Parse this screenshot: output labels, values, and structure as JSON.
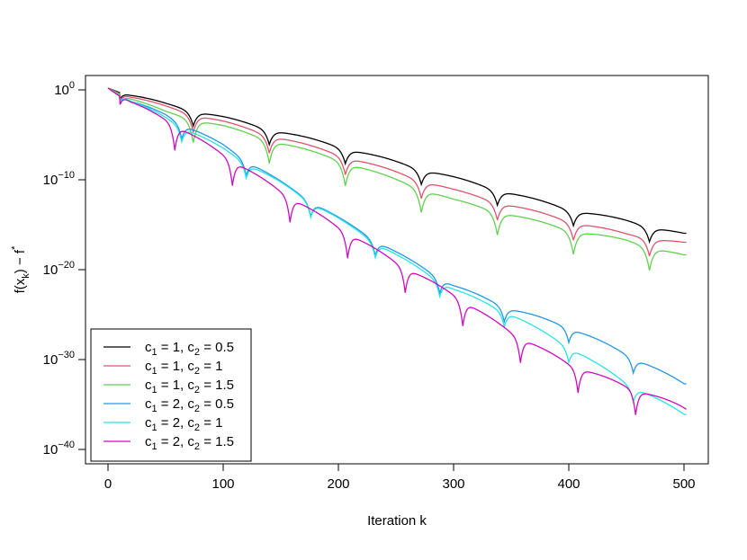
{
  "chart_data": {
    "type": "line",
    "title": "",
    "xlabel": "Iteration  k",
    "ylabel": "f(x_k) − f*",
    "x_scale": "linear",
    "y_scale": "log10",
    "xlim": [
      0,
      505
    ],
    "ylim_log10": [
      -41,
      2
    ],
    "x_ticks": [
      0,
      100,
      200,
      300,
      400,
      500
    ],
    "x_tick_labels": [
      "0",
      "100",
      "200",
      "300",
      "400",
      "500"
    ],
    "y_ticks_log10": [
      0,
      -10,
      -20,
      -30,
      -40
    ],
    "y_tick_labels": [
      "10^0",
      "10^-10",
      "10^-20",
      "10^-30",
      "10^-40"
    ],
    "grid": false,
    "legend_position": "bottom-left",
    "series": [
      {
        "name": "c1 = 1, c2 = 0.5",
        "legend": {
          "c1": "1",
          "c2": "0.5"
        },
        "color": "#000000",
        "period": 66,
        "dip_depth": 1.5,
        "points": [
          [
            0,
            0.2
          ],
          [
            20,
            -0.8
          ],
          [
            50,
            -1.8
          ],
          [
            100,
            -3.3
          ],
          [
            200,
            -6.5
          ],
          [
            300,
            -10.0
          ],
          [
            400,
            -13.5
          ],
          [
            450,
            -14.8
          ],
          [
            500,
            -16.3
          ]
        ]
      },
      {
        "name": "c1 = 1, c2 = 1",
        "legend": {
          "c1": "1",
          "c2": "1"
        },
        "color": "#DF536B",
        "period": 66,
        "dip_depth": 1.8,
        "points": [
          [
            0,
            0.2
          ],
          [
            20,
            -1.0
          ],
          [
            50,
            -2.1
          ],
          [
            100,
            -3.8
          ],
          [
            200,
            -7.4
          ],
          [
            300,
            -11.4
          ],
          [
            400,
            -14.8
          ],
          [
            450,
            -16.3
          ],
          [
            500,
            -17.3
          ]
        ]
      },
      {
        "name": "c1 = 1, c2 = 1.5",
        "legend": {
          "c1": "1",
          "c2": "1.5"
        },
        "color": "#61D04F",
        "period": 66,
        "dip_depth": 2.4,
        "points": [
          [
            0,
            0.2
          ],
          [
            20,
            -1.2
          ],
          [
            50,
            -2.7
          ],
          [
            100,
            -4.3
          ],
          [
            200,
            -8.0
          ],
          [
            300,
            -12.5
          ],
          [
            400,
            -15.8
          ],
          [
            450,
            -17.0
          ],
          [
            500,
            -18.7
          ]
        ]
      },
      {
        "name": "c1 = 2, c2 = 0.5",
        "legend": {
          "c1": "2",
          "c2": "0.5"
        },
        "color": "#2297E6",
        "period": 56,
        "dip_depth": 1.5,
        "points": [
          [
            0,
            0.2
          ],
          [
            20,
            -1.5
          ],
          [
            50,
            -3.0
          ],
          [
            100,
            -6.4
          ],
          [
            150,
            -10.5
          ],
          [
            200,
            -14.5
          ],
          [
            250,
            -18.3
          ],
          [
            300,
            -22.0
          ],
          [
            350,
            -24.6
          ],
          [
            400,
            -26.6
          ],
          [
            450,
            -29.6
          ],
          [
            500,
            -32.9
          ]
        ]
      },
      {
        "name": "c1 = 2, c2 = 1",
        "legend": {
          "c1": "2",
          "c2": "1"
        },
        "color": "#28E2E5",
        "period": 56,
        "dip_depth": 1.5,
        "points": [
          [
            0,
            0.2
          ],
          [
            20,
            -1.5
          ],
          [
            50,
            -3.3
          ],
          [
            100,
            -6.8
          ],
          [
            150,
            -10.6
          ],
          [
            200,
            -14.6
          ],
          [
            250,
            -18.6
          ],
          [
            300,
            -22.4
          ],
          [
            350,
            -25.2
          ],
          [
            400,
            -28.8
          ],
          [
            450,
            -32.8
          ],
          [
            500,
            -36.3
          ]
        ]
      },
      {
        "name": "c1 = 2, c2 = 1.5",
        "legend": {
          "c1": "2",
          "c2": "1.5"
        },
        "color": "#CD0BBC",
        "period": 50,
        "dip_depth": 2.6,
        "points": [
          [
            0,
            0.2
          ],
          [
            20,
            -1.6
          ],
          [
            50,
            -3.5
          ],
          [
            100,
            -7.4
          ],
          [
            150,
            -11.5
          ],
          [
            200,
            -15.5
          ],
          [
            250,
            -19.4
          ],
          [
            300,
            -23.0
          ],
          [
            350,
            -27.2
          ],
          [
            400,
            -30.7
          ],
          [
            450,
            -33.2
          ],
          [
            500,
            -35.5
          ]
        ]
      }
    ]
  }
}
